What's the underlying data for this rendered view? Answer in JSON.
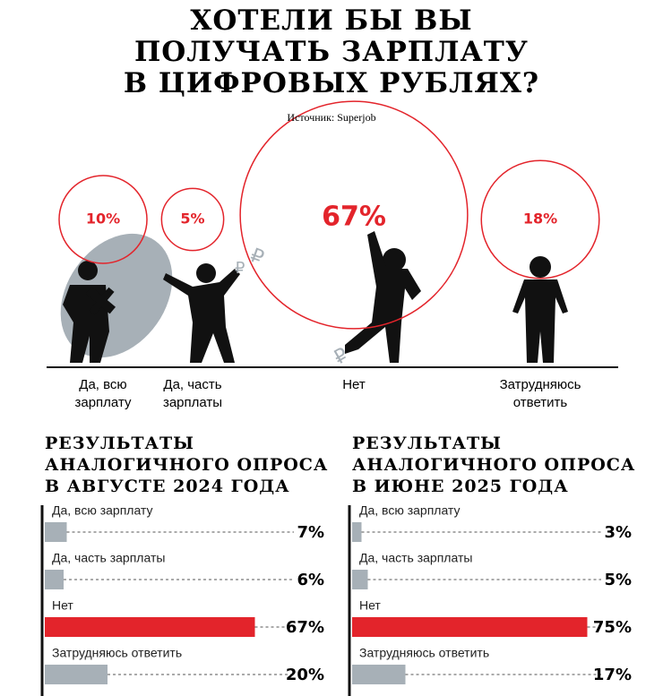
{
  "chart_data": [
    {
      "type": "bubble",
      "title": "Хотели бы вы\nполучать зарплату\nв цифровых рублях?",
      "subtitle": "Источник: Superjob",
      "categories": [
        "Да, всю\nзарплату",
        "Да, часть\nзарплаты",
        "Нет",
        "Затрудняюсь\nответить"
      ],
      "values": [
        10,
        5,
        67,
        18
      ],
      "value_labels": [
        "10%",
        "5%",
        "67%",
        "18%"
      ],
      "color": "#e3242b"
    },
    {
      "type": "hbar",
      "title": "Результаты\nаналогичного опроса\nв августе 2024 года",
      "categories": [
        "Да, всю зарплату",
        "Да, часть зарплаты",
        "Нет",
        "Затрудняюсь ответить"
      ],
      "values": [
        7,
        6,
        67,
        20
      ],
      "value_labels": [
        "7%",
        "6%",
        "67%",
        "20%"
      ],
      "colors": [
        "#a7b0b7",
        "#a7b0b7",
        "#e3242b",
        "#a7b0b7"
      ],
      "xlim": [
        0,
        100
      ]
    },
    {
      "type": "hbar",
      "title": "Результаты\nаналогичного опроса\nв июне 2025 года",
      "categories": [
        "Да, всю зарплату",
        "Да, часть зарплаты",
        "Нет",
        "Затрудняюсь ответить"
      ],
      "values": [
        3,
        5,
        75,
        17
      ],
      "value_labels": [
        "3%",
        "5%",
        "75%",
        "17%"
      ],
      "colors": [
        "#a7b0b7",
        "#a7b0b7",
        "#e3242b",
        "#a7b0b7"
      ],
      "xlim": [
        0,
        100
      ]
    }
  ]
}
